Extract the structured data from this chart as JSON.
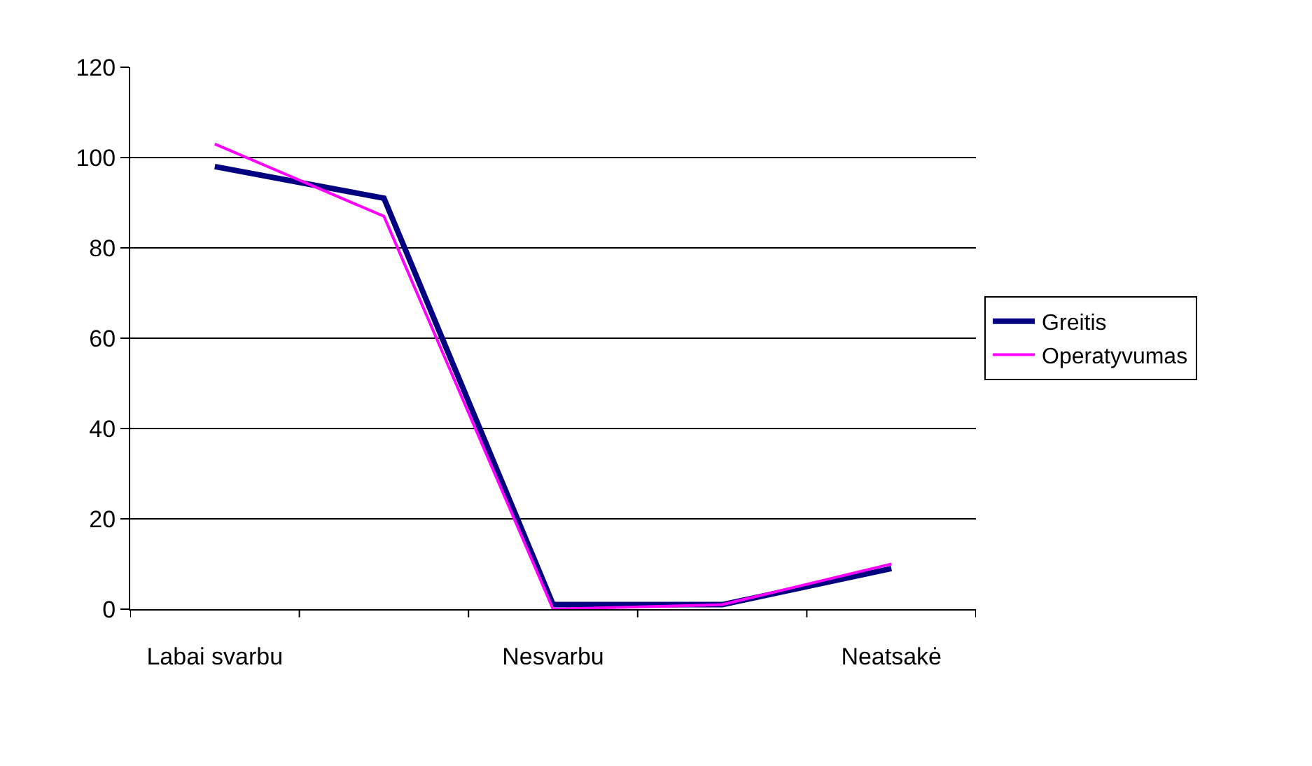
{
  "chart_data": {
    "type": "line",
    "categories": [
      "Labai svarbu",
      null,
      "Nesvarbu",
      null,
      "Neatsakė"
    ],
    "series": [
      {
        "name": "Greitis",
        "color": "#000080",
        "values": [
          98,
          91,
          1,
          1,
          9
        ]
      },
      {
        "name": "Operatyvumas",
        "color": "#ff00ff",
        "values": [
          103,
          87,
          0,
          1,
          10
        ]
      }
    ],
    "ylim": [
      0,
      120
    ],
    "yticks": [
      0,
      20,
      40,
      60,
      80,
      100,
      120
    ],
    "grid": "y",
    "legend": "right",
    "marker": "none"
  }
}
